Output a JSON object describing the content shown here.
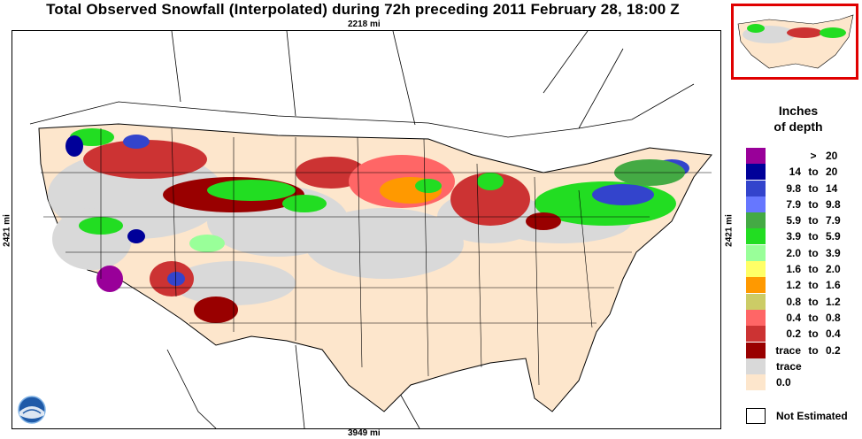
{
  "title": "Total Observed Snowfall (Interpolated) during 72h preceding 2011 February 28, 18:00 Z",
  "scale": {
    "top": "2218 mi",
    "bottom": "3949 mi",
    "left": "2421 mi",
    "right": "2421 mi"
  },
  "legend": {
    "title_line1": "Inches",
    "title_line2": "of depth",
    "rows": [
      {
        "lo": "",
        "mid": ">",
        "hi": "20",
        "color": "#990099"
      },
      {
        "lo": "14",
        "mid": "to",
        "hi": "20",
        "color": "#000099"
      },
      {
        "lo": "9.8",
        "mid": "to",
        "hi": "14",
        "color": "#3344cc"
      },
      {
        "lo": "7.9",
        "mid": "to",
        "hi": "9.8",
        "color": "#6677ff"
      },
      {
        "lo": "5.9",
        "mid": "to",
        "hi": "7.9",
        "color": "#44aa44"
      },
      {
        "lo": "3.9",
        "mid": "to",
        "hi": "5.9",
        "color": "#22dd22"
      },
      {
        "lo": "2.0",
        "mid": "to",
        "hi": "3.9",
        "color": "#99ff99"
      },
      {
        "lo": "1.6",
        "mid": "to",
        "hi": "2.0",
        "color": "#ffff66"
      },
      {
        "lo": "1.2",
        "mid": "to",
        "hi": "1.6",
        "color": "#ff9900"
      },
      {
        "lo": "0.8",
        "mid": "to",
        "hi": "1.2",
        "color": "#cccc66"
      },
      {
        "lo": "0.4",
        "mid": "to",
        "hi": "0.8",
        "color": "#ff6666"
      },
      {
        "lo": "0.2",
        "mid": "to",
        "hi": "0.4",
        "color": "#cc3333"
      },
      {
        "lo": "trace",
        "mid": "to",
        "hi": "0.2",
        "color": "#990000"
      },
      {
        "single": "trace",
        "color": "#d9d9d9"
      },
      {
        "single": "0.0",
        "color": "#fde6cc"
      }
    ],
    "not_estimated": "Not Estimated"
  },
  "logo": "noaa-logo"
}
